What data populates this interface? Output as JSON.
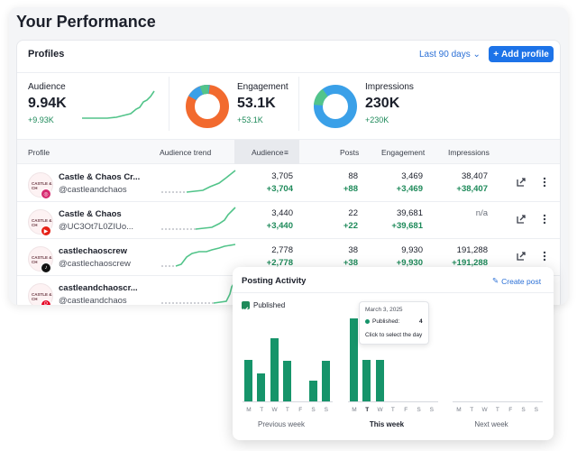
{
  "page_title": "Your Performance",
  "profiles": {
    "title": "Profiles",
    "range": "Last 90 days",
    "add_label": "Add profile"
  },
  "metrics": {
    "audience": {
      "label": "Audience",
      "value": "9.94K",
      "delta": "+9.93K"
    },
    "engagement": {
      "label": "Engagement",
      "value": "53.1K",
      "delta": "+53.1K"
    },
    "impressions": {
      "label": "Impressions",
      "value": "230K",
      "delta": "+230K"
    }
  },
  "table": {
    "headers": {
      "profile": "Profile",
      "trend": "Audience trend",
      "audience": "Audience",
      "posts": "Posts",
      "engagement": "Engagement",
      "impressions": "Impressions"
    },
    "rows": [
      {
        "name": "Castle & Chaos Cr...",
        "handle": "@castleandchaos",
        "network": "instagram",
        "audience": "3,705",
        "audience_delta": "+3,704",
        "posts": "88",
        "posts_delta": "+88",
        "engagement": "3,469",
        "engagement_delta": "+3,469",
        "impressions": "38,407",
        "impressions_delta": "+38,407"
      },
      {
        "name": "Castle & Chaos",
        "handle": "@UC3Ot7L0ZIUo...",
        "network": "youtube",
        "audience": "3,440",
        "audience_delta": "+3,440",
        "posts": "22",
        "posts_delta": "+22",
        "engagement": "39,681",
        "engagement_delta": "+39,681",
        "impressions": "n/a",
        "impressions_delta": ""
      },
      {
        "name": "castlechaoscrew",
        "handle": "@castlechaoscrew",
        "network": "tiktok",
        "audience": "2,778",
        "audience_delta": "+2,778",
        "posts": "38",
        "posts_delta": "+38",
        "engagement": "9,930",
        "engagement_delta": "+9,930",
        "impressions": "191,288",
        "impressions_delta": "+191,288"
      },
      {
        "name": "castleandchaoscr...",
        "handle": "@castleandchaos",
        "network": "pinterest",
        "audience": "",
        "audience_delta": "",
        "posts": "",
        "posts_delta": "",
        "engagement": "",
        "engagement_delta": "",
        "impressions": "",
        "impressions_delta": ""
      }
    ],
    "avatar_text": "CASTLE & CH"
  },
  "posting": {
    "title": "Posting Activity",
    "create_label": "Create post",
    "filter_label": "Published",
    "days": [
      "M",
      "T",
      "W",
      "T",
      "F",
      "S",
      "S"
    ],
    "weeks": [
      "Previous week",
      "This week",
      "Next week"
    ],
    "tooltip": {
      "date": "March 3, 2025",
      "label": "Published:",
      "count": "4",
      "hint": "Click to select the day"
    },
    "bar_color": "#16946a"
  },
  "colors": {
    "accent": "#1d73e8",
    "positive": "#1e8a5a",
    "donut_orange": "#f26a2e",
    "donut_blue": "#3aa0e8",
    "donut_green": "#52c48a"
  }
}
